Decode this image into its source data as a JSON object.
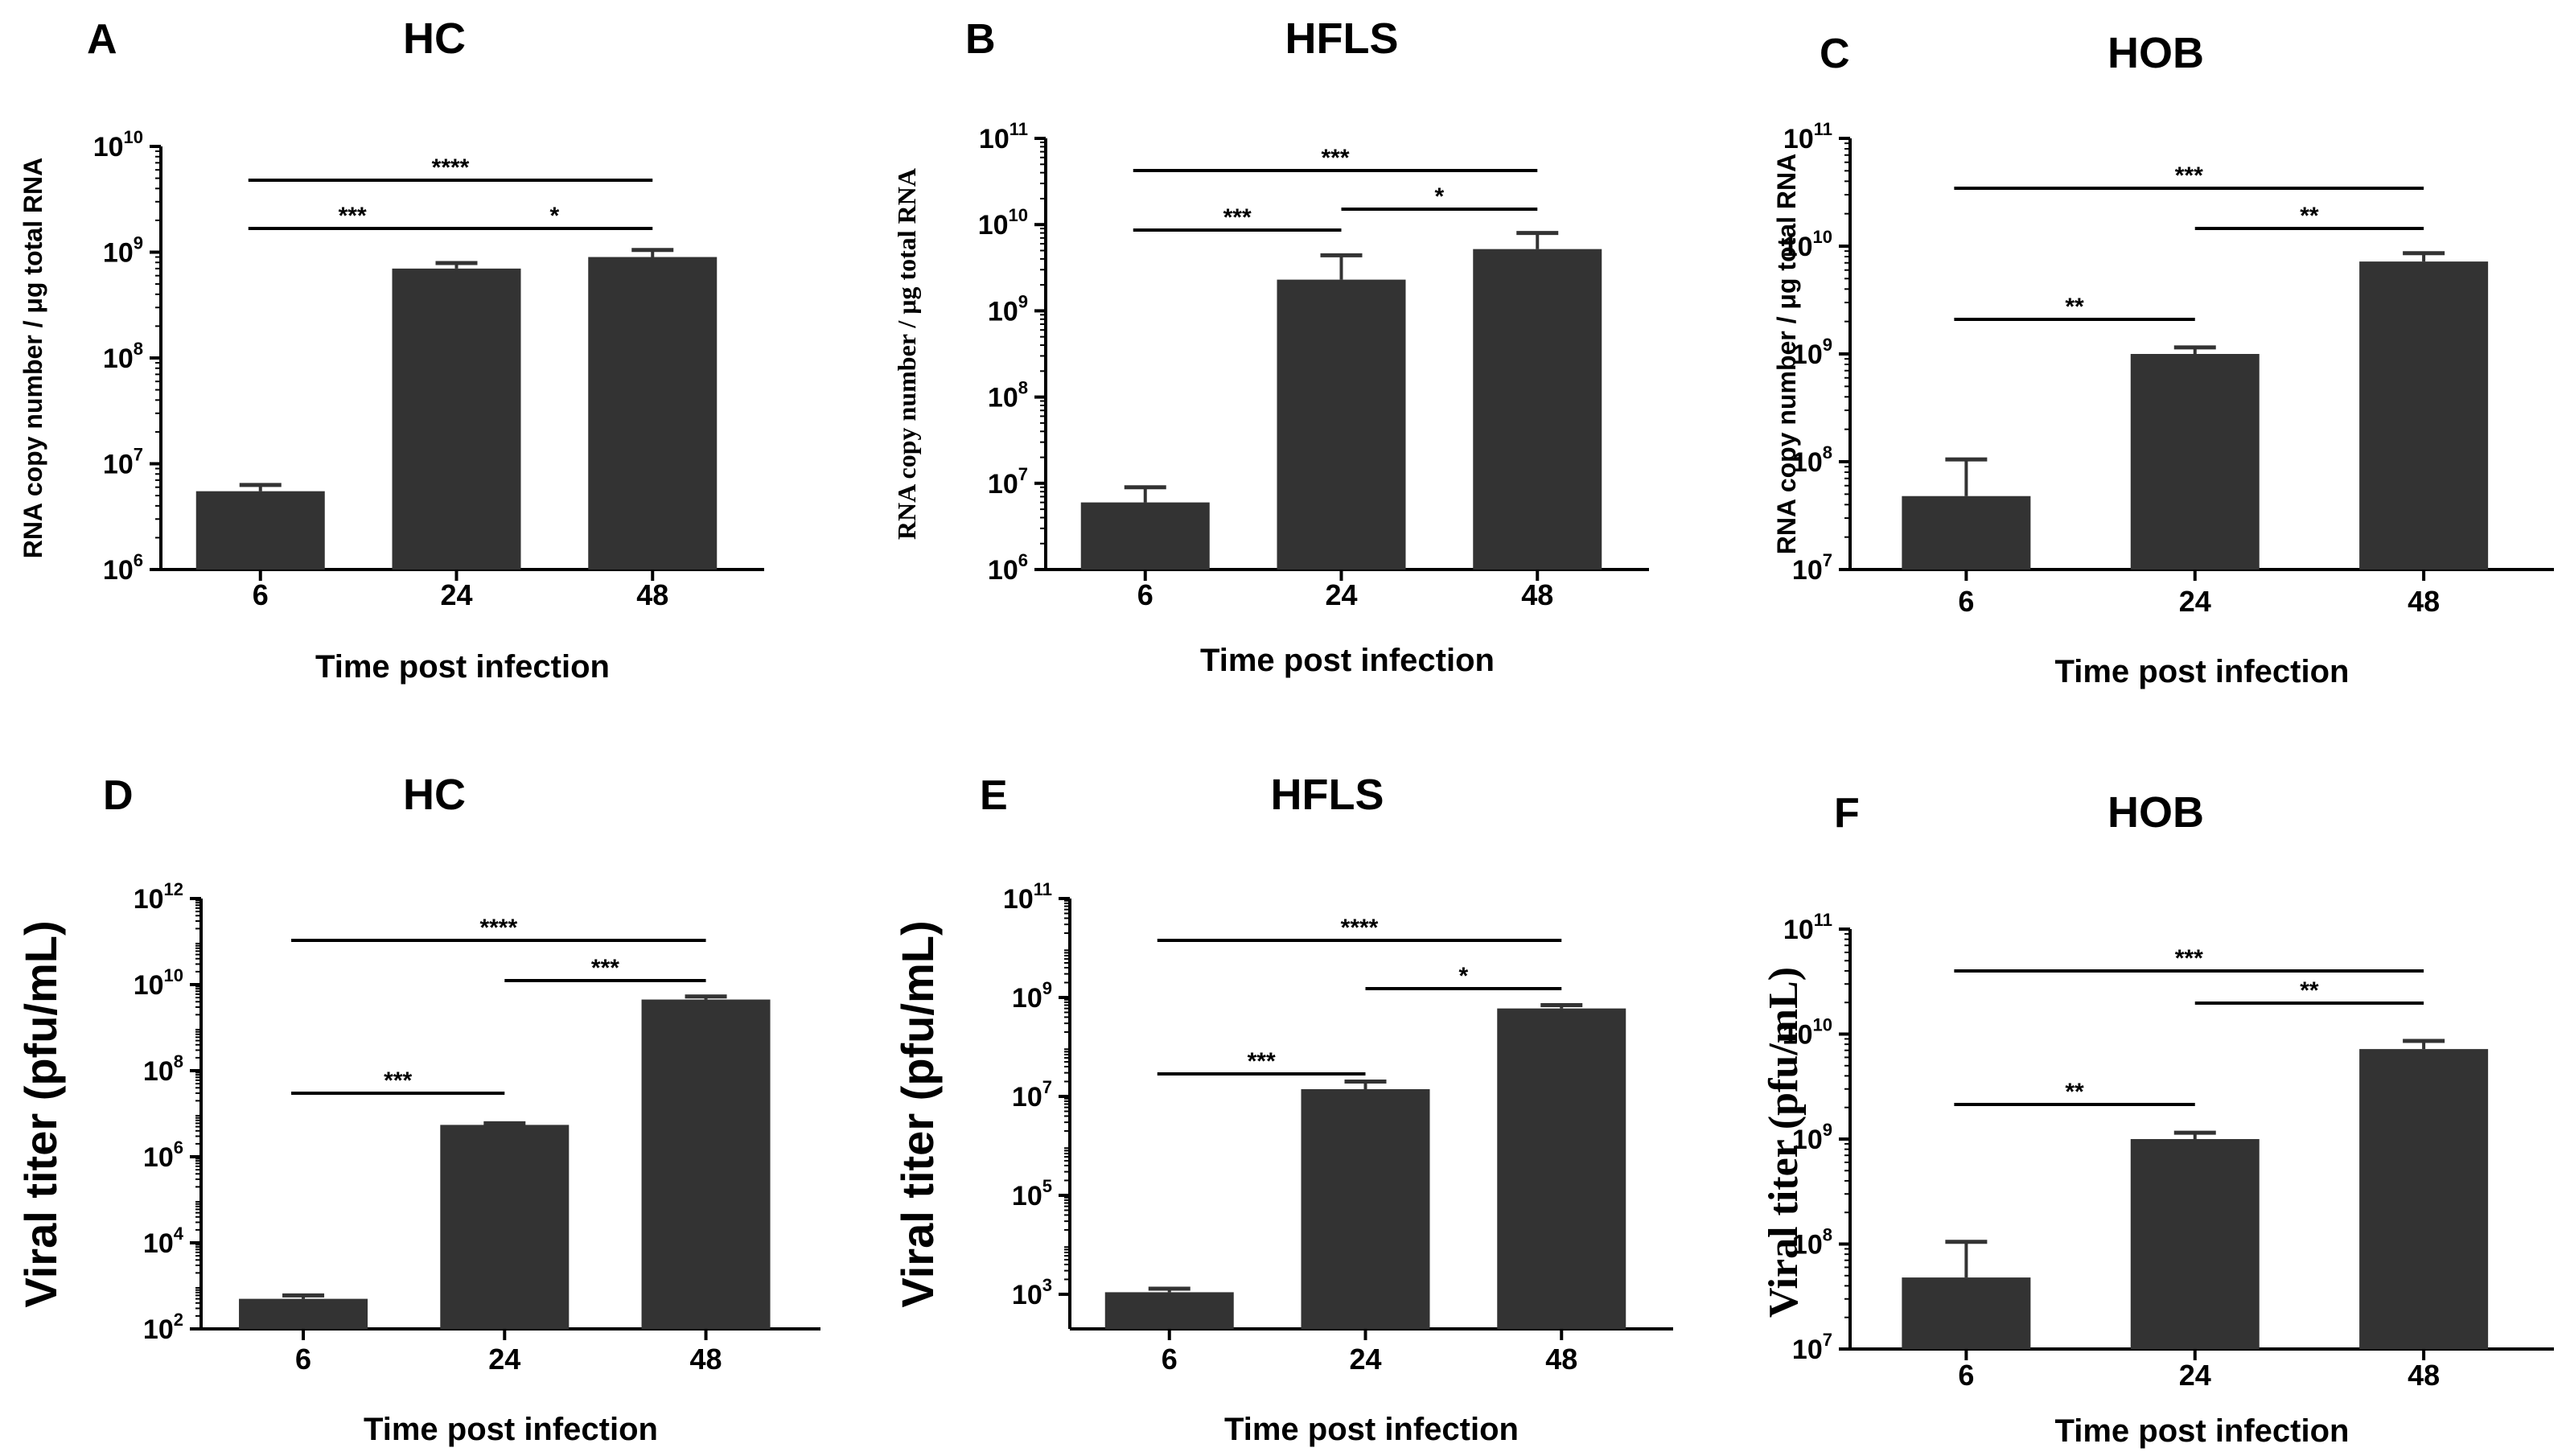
{
  "chart_data": [
    {
      "panel": "A",
      "title": "HC",
      "type": "bar",
      "scale": "log",
      "categories": [
        "6",
        "24",
        "48"
      ],
      "values": [
        5500000,
        700000000,
        900000000
      ],
      "error_upper": [
        6300000,
        790000000,
        1050000000
      ],
      "ylabel": "RNA copy number / μg total RNA",
      "xlabel": "Time post infection",
      "ylim_exp": [
        6,
        10
      ],
      "yticks": [
        {
          "base": "10",
          "exp": "6"
        },
        {
          "base": "10",
          "exp": "7"
        },
        {
          "base": "10",
          "exp": "8"
        },
        {
          "base": "10",
          "exp": "9"
        },
        {
          "base": "10",
          "exp": "10"
        }
      ],
      "significance": [
        {
          "from": 0,
          "to": 2,
          "label": "****"
        },
        {
          "from": 0,
          "to": 1,
          "label": "***"
        },
        {
          "from": 1,
          "to": 2,
          "label": "*"
        }
      ]
    },
    {
      "panel": "B",
      "title": "HFLS",
      "type": "bar",
      "scale": "log",
      "categories": [
        "6",
        "24",
        "48"
      ],
      "values": [
        6000000,
        2300000000,
        5200000000
      ],
      "error_upper": [
        9000000,
        4400000000,
        8000000000
      ],
      "ylabel": "RNA copy number / μg total RNA",
      "xlabel": "Time post infection",
      "ylim_exp": [
        6,
        11
      ],
      "yticks": [
        {
          "base": "10",
          "exp": "6"
        },
        {
          "base": "10",
          "exp": "7"
        },
        {
          "base": "10",
          "exp": "8"
        },
        {
          "base": "10",
          "exp": "9"
        },
        {
          "base": "10",
          "exp": "10"
        },
        {
          "base": "10",
          "exp": "11"
        }
      ],
      "significance": [
        {
          "from": 0,
          "to": 2,
          "label": "***"
        },
        {
          "from": 0,
          "to": 1,
          "label": "***"
        },
        {
          "from": 1,
          "to": 2,
          "label": "*"
        }
      ]
    },
    {
      "panel": "C",
      "title": "HOB",
      "type": "bar",
      "scale": "log",
      "categories": [
        "6",
        "24",
        "48"
      ],
      "values": [
        48000000,
        1000000000,
        7200000000
      ],
      "error_upper": [
        105000000,
        1150000000,
        8600000000
      ],
      "ylabel": "RNA copy number / μg total RNA",
      "xlabel": "Time post infection",
      "ylim_exp": [
        7,
        11
      ],
      "yticks": [
        {
          "base": "10",
          "exp": "7"
        },
        {
          "base": "10",
          "exp": "8"
        },
        {
          "base": "10",
          "exp": "9"
        },
        {
          "base": "10",
          "exp": "10"
        },
        {
          "base": "10",
          "exp": "11"
        }
      ],
      "significance": [
        {
          "from": 0,
          "to": 2,
          "label": "***"
        },
        {
          "from": 1,
          "to": 2,
          "label": "**"
        },
        {
          "from": 0,
          "to": 1,
          "label": "**"
        }
      ]
    },
    {
      "panel": "D",
      "title": "HC",
      "type": "bar",
      "scale": "log",
      "categories": [
        "6",
        "24",
        "48"
      ],
      "values": [
        500,
        5500000,
        4500000000
      ],
      "error_upper": [
        600,
        6000000,
        5300000000
      ],
      "ylabel": "Viral titer (pfu/mL)",
      "xlabel": "Time post infection",
      "ylim_exp": [
        2,
        12
      ],
      "yticks": [
        {
          "base": "10",
          "exp": "2"
        },
        {
          "base": "10",
          "exp": "4"
        },
        {
          "base": "10",
          "exp": "6"
        },
        {
          "base": "10",
          "exp": "8"
        },
        {
          "base": "10",
          "exp": "10"
        },
        {
          "base": "10",
          "exp": "12"
        }
      ],
      "significance": [
        {
          "from": 0,
          "to": 2,
          "label": "****"
        },
        {
          "from": 1,
          "to": 2,
          "label": "***"
        },
        {
          "from": 0,
          "to": 1,
          "label": "***"
        }
      ]
    },
    {
      "panel": "E",
      "title": "HFLS",
      "type": "bar",
      "scale": "log",
      "categories": [
        "6",
        "24",
        "48"
      ],
      "values": [
        1100,
        14000000,
        600000000
      ],
      "error_upper": [
        1300,
        20000000,
        700000000
      ],
      "ylabel": "Viral titer (pfu/mL)",
      "xlabel": "Time post infection",
      "ylim_exp": [
        2.3,
        11
      ],
      "yticks": [
        {
          "base": "10",
          "exp": "3"
        },
        {
          "base": "10",
          "exp": "5"
        },
        {
          "base": "10",
          "exp": "7"
        },
        {
          "base": "10",
          "exp": "9"
        },
        {
          "base": "10",
          "exp": "11"
        }
      ],
      "significance": [
        {
          "from": 0,
          "to": 2,
          "label": "****"
        },
        {
          "from": 1,
          "to": 2,
          "label": "*"
        },
        {
          "from": 0,
          "to": 1,
          "label": "***"
        }
      ]
    },
    {
      "panel": "F",
      "title": "HOB",
      "type": "bar",
      "scale": "log",
      "categories": [
        "6",
        "24",
        "48"
      ],
      "values": [
        48000000,
        1000000000,
        7200000000
      ],
      "error_upper": [
        105000000,
        1150000000,
        8600000000
      ],
      "ylabel": "Viral titer (pfu/mL)",
      "xlabel": "Time post infection",
      "ylim_exp": [
        7,
        11
      ],
      "yticks": [
        {
          "base": "10",
          "exp": "7"
        },
        {
          "base": "10",
          "exp": "8"
        },
        {
          "base": "10",
          "exp": "9"
        },
        {
          "base": "10",
          "exp": "10"
        },
        {
          "base": "10",
          "exp": "11"
        }
      ],
      "significance": [
        {
          "from": 0,
          "to": 2,
          "label": "***"
        },
        {
          "from": 1,
          "to": 2,
          "label": "**"
        },
        {
          "from": 0,
          "to": 1,
          "label": "**"
        }
      ]
    }
  ],
  "colors": {
    "bar": "#333333",
    "axis": "#000000"
  }
}
